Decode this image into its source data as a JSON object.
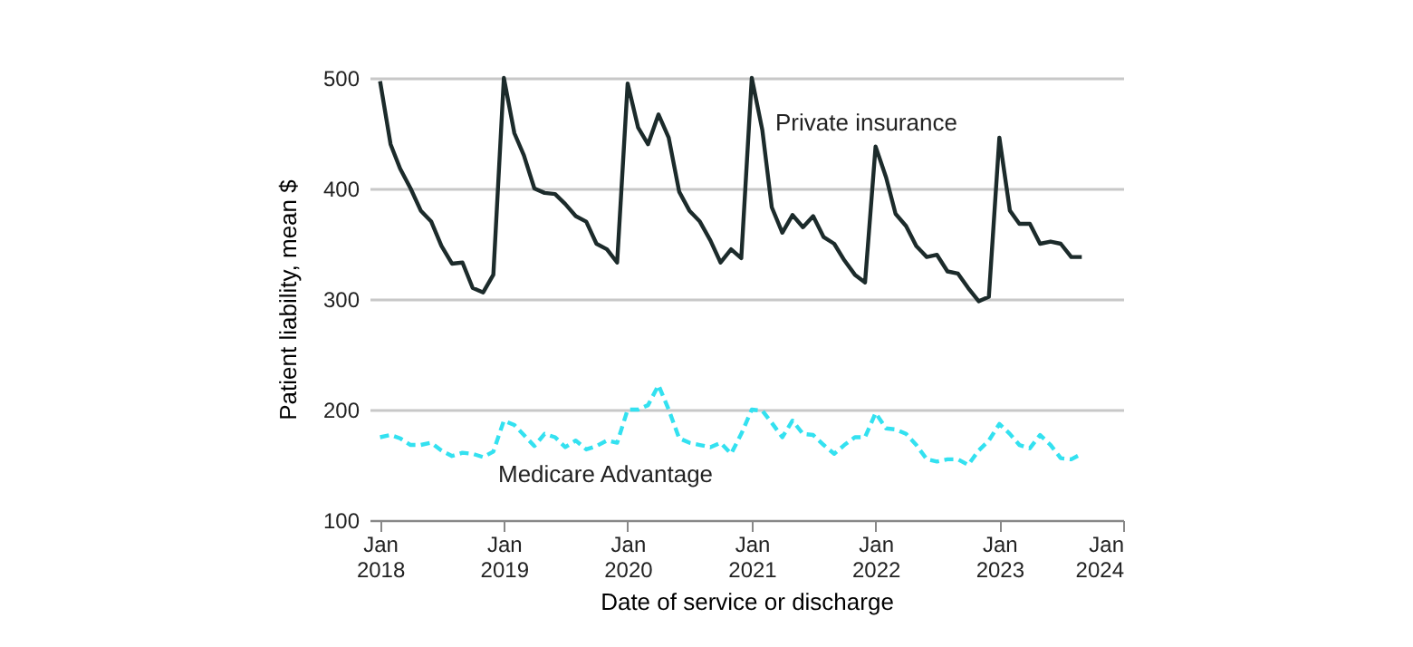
{
  "chart_data": {
    "type": "line",
    "xlabel": "Date of service or discharge",
    "ylabel": "Patient liability, mean $",
    "x": [
      "2018-01",
      "2018-02",
      "2018-03",
      "2018-04",
      "2018-05",
      "2018-06",
      "2018-07",
      "2018-08",
      "2018-09",
      "2018-10",
      "2018-11",
      "2018-12",
      "2019-01",
      "2019-02",
      "2019-03",
      "2019-04",
      "2019-05",
      "2019-06",
      "2019-07",
      "2019-08",
      "2019-09",
      "2019-10",
      "2019-11",
      "2019-12",
      "2020-01",
      "2020-02",
      "2020-03",
      "2020-04",
      "2020-05",
      "2020-06",
      "2020-07",
      "2020-08",
      "2020-09",
      "2020-10",
      "2020-11",
      "2020-12",
      "2021-01",
      "2021-02",
      "2021-03",
      "2021-04",
      "2021-05",
      "2021-06",
      "2021-07",
      "2021-08",
      "2021-09",
      "2021-10",
      "2021-11",
      "2021-12",
      "2022-01",
      "2022-02",
      "2022-03",
      "2022-04",
      "2022-05",
      "2022-06",
      "2022-07",
      "2022-08",
      "2022-09",
      "2022-10",
      "2022-11",
      "2022-12",
      "2023-01",
      "2023-02",
      "2023-03",
      "2023-04",
      "2023-05",
      "2023-06",
      "2023-07",
      "2023-08",
      "2023-09"
    ],
    "series": [
      {
        "name": "Private insurance",
        "color": "#1c2b2b",
        "line_style": "solid",
        "values": [
          497,
          440,
          418,
          400,
          380,
          370,
          348,
          332,
          333,
          310,
          306,
          322,
          500,
          450,
          430,
          400,
          396,
          395,
          386,
          375,
          370,
          350,
          345,
          333,
          495,
          455,
          440,
          467,
          446,
          397,
          380,
          370,
          353,
          333,
          345,
          337,
          500,
          453,
          383,
          360,
          376,
          365,
          375,
          356,
          350,
          335,
          322,
          315,
          438,
          410,
          377,
          366,
          348,
          338,
          340,
          325,
          323,
          310,
          298,
          302,
          446,
          380,
          368,
          368,
          350,
          352,
          350,
          338,
          338
        ]
      },
      {
        "name": "Medicare Advantage",
        "color": "#33e1f0",
        "line_style": "dashed",
        "values": [
          175,
          177,
          174,
          168,
          168,
          170,
          163,
          158,
          161,
          160,
          157,
          162,
          190,
          186,
          177,
          167,
          178,
          175,
          166,
          172,
          164,
          167,
          172,
          170,
          200,
          200,
          204,
          222,
          200,
          174,
          170,
          168,
          166,
          170,
          160,
          178,
          200,
          199,
          188,
          175,
          190,
          178,
          177,
          168,
          160,
          168,
          175,
          175,
          197,
          183,
          182,
          178,
          168,
          155,
          153,
          155,
          155,
          150,
          163,
          172,
          187,
          178,
          168,
          165,
          177,
          168,
          156,
          155,
          160
        ]
      }
    ],
    "xlim": [
      "2017-12",
      "2024-01"
    ],
    "xticks": [
      {
        "value": "2018-01",
        "label": "Jan 2018"
      },
      {
        "value": "2019-01",
        "label": "Jan 2019"
      },
      {
        "value": "2020-01",
        "label": "Jan 2020"
      },
      {
        "value": "2021-01",
        "label": "Jan 2021"
      },
      {
        "value": "2022-01",
        "label": "Jan 2022"
      },
      {
        "value": "2023-01",
        "label": "Jan 2023"
      },
      {
        "value": "2024-01",
        "label": "Jan 2024"
      }
    ],
    "ylim": [
      100,
      500
    ],
    "yticks": [
      100,
      200,
      300,
      400,
      500
    ],
    "grid": "y",
    "legend": false,
    "marker": "none"
  }
}
